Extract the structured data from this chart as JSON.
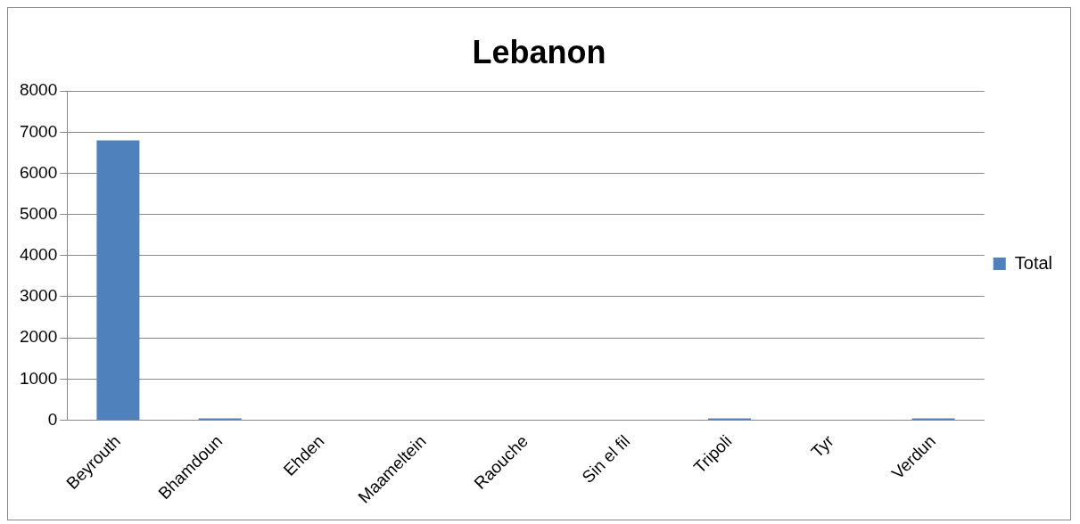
{
  "chart_data": {
    "type": "bar",
    "title": "Lebanon",
    "categories": [
      "Beyrouth",
      "Bhamdoun",
      "Ehden",
      "Maameltein",
      "Raouche",
      "Sin el fil",
      "Tripoli",
      "Tyr",
      "Verdun"
    ],
    "series": [
      {
        "name": "Total",
        "color": "#4f81bd",
        "values": [
          6800,
          40,
          0,
          0,
          0,
          0,
          40,
          0,
          40
        ]
      }
    ],
    "ylim": [
      0,
      8000
    ],
    "yticks": [
      0,
      1000,
      2000,
      3000,
      4000,
      5000,
      6000,
      7000,
      8000
    ],
    "grid": "y",
    "legend": "right"
  }
}
